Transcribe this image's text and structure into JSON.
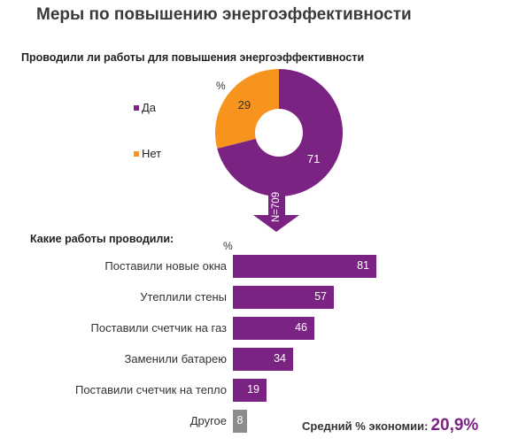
{
  "title": "Меры по повышению энергоэффективности",
  "colors": {
    "purple": "#7b2382",
    "orange": "#f7941d",
    "gray": "#8c8c8c",
    "arrow": "#7b2382"
  },
  "chart_data": [
    {
      "type": "pie",
      "title": "Проводили  ли работы для повышения  энергоэффективности",
      "unit": "%",
      "sample_label": "N=709",
      "slices": [
        {
          "label": "Да",
          "value": 71
        },
        {
          "label": "Нет",
          "value": 29
        }
      ],
      "legend_position": "left"
    },
    {
      "type": "bar",
      "title": "Какие  работы проводили:",
      "unit": "%",
      "categories": [
        "Поставили новые окна",
        "Утеплили стены",
        "Поставили счетчик на газ",
        "Заменили батарею",
        "Поставили счетчик на тепло",
        "Другое"
      ],
      "values": [
        81,
        57,
        46,
        34,
        19,
        8
      ],
      "xlim": [
        0,
        100
      ]
    }
  ],
  "summary": {
    "label": "Средний  % экономии:",
    "value": "20,9%"
  }
}
